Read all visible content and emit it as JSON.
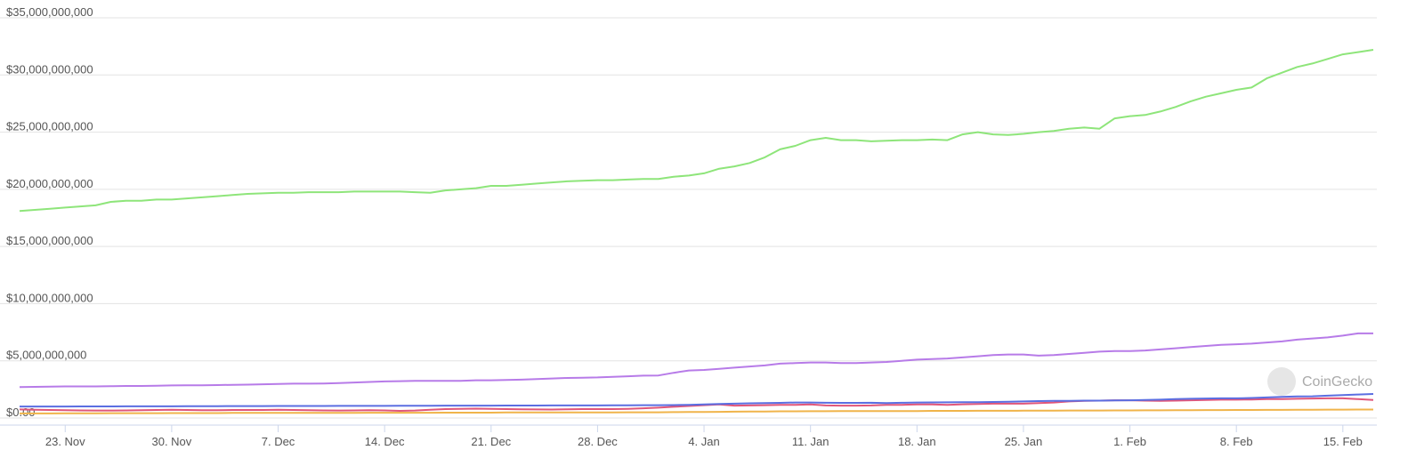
{
  "chart_data": {
    "type": "line",
    "watermark": "CoinGecko",
    "categories": [
      null,
      null,
      null,
      "23. Nov",
      null,
      null,
      null,
      null,
      null,
      null,
      "30. Nov",
      null,
      null,
      null,
      null,
      null,
      null,
      "7. Dec",
      null,
      null,
      null,
      null,
      null,
      null,
      "14. Dec",
      null,
      null,
      null,
      null,
      null,
      null,
      "21. Dec",
      null,
      null,
      null,
      null,
      null,
      null,
      "28. Dec",
      null,
      null,
      null,
      null,
      null,
      null,
      "4. Jan",
      null,
      null,
      null,
      null,
      null,
      null,
      "11. Jan",
      null,
      null,
      null,
      null,
      null,
      null,
      "18. Jan",
      null,
      null,
      null,
      null,
      null,
      null,
      "25. Jan",
      null,
      null,
      null,
      null,
      null,
      null,
      "1. Feb",
      null,
      null,
      null,
      null,
      null,
      null,
      "8. Feb",
      null,
      null,
      null,
      null,
      null,
      null,
      "15. Feb",
      null,
      null
    ],
    "ylim": [
      0,
      35000000000
    ],
    "yticks": [
      {
        "value": 0,
        "label": "$0.00"
      },
      {
        "value": 5000000000,
        "label": "$5,000,000,000"
      },
      {
        "value": 10000000000,
        "label": "$10,000,000,000"
      },
      {
        "value": 15000000000,
        "label": "$15,000,000,000"
      },
      {
        "value": 20000000000,
        "label": "$20,000,000,000"
      },
      {
        "value": 25000000000,
        "label": "$25,000,000,000"
      },
      {
        "value": 30000000000,
        "label": "$30,000,000,000"
      },
      {
        "value": 35000000000,
        "label": "$35,000,000,000"
      }
    ],
    "grid": true,
    "series": [
      {
        "color": "#8ee57a",
        "values": [
          18100000000.0,
          18200000000.0,
          18300000000.0,
          18400000000.0,
          18500000000.0,
          18600000000.0,
          18900000000.0,
          19000000000.0,
          19000000000.0,
          19100000000.0,
          19100000000.0,
          19200000000.0,
          19300000000.0,
          19400000000.0,
          19500000000.0,
          19600000000.0,
          19650000000.0,
          19700000000.0,
          19700000000.0,
          19750000000.0,
          19750000000.0,
          19750000000.0,
          19800000000.0,
          19800000000.0,
          19800000000.0,
          19800000000.0,
          19750000000.0,
          19700000000.0,
          19900000000.0,
          20000000000.0,
          20100000000.0,
          20300000000.0,
          20300000000.0,
          20400000000.0,
          20500000000.0,
          20600000000.0,
          20700000000.0,
          20750000000.0,
          20800000000.0,
          20800000000.0,
          20850000000.0,
          20900000000.0,
          20900000000.0,
          21100000000.0,
          21200000000.0,
          21400000000.0,
          21800000000.0,
          22000000000.0,
          22300000000.0,
          22800000000.0,
          23500000000.0,
          23800000000.0,
          24300000000.0,
          24500000000.0,
          24300000000.0,
          24300000000.0,
          24200000000.0,
          24250000000.0,
          24300000000.0,
          24300000000.0,
          24350000000.0,
          24300000000.0,
          24800000000.0,
          25000000000.0,
          24800000000.0,
          24750000000.0,
          24850000000.0,
          25000000000.0,
          25100000000.0,
          25300000000.0,
          25400000000.0,
          25300000000.0,
          26200000000.0,
          26400000000.0,
          26500000000.0,
          26800000000.0,
          27200000000.0,
          27700000000.0,
          28100000000.0,
          28400000000.0,
          28700000000.0,
          28900000000.0,
          29700000000.0,
          30200000000.0,
          30700000000.0,
          31000000000.0,
          31400000000.0,
          31800000000.0,
          32000000000.0,
          32200000000.0
        ]
      },
      {
        "color": "#b77be8",
        "values": [
          2700000000.0,
          2720000000.0,
          2740000000.0,
          2760000000.0,
          2760000000.0,
          2760000000.0,
          2780000000.0,
          2800000000.0,
          2800000000.0,
          2820000000.0,
          2850000000.0,
          2860000000.0,
          2860000000.0,
          2880000000.0,
          2900000000.0,
          2920000000.0,
          2950000000.0,
          2980000000.0,
          3000000000.0,
          3000000000.0,
          3020000000.0,
          3050000000.0,
          3100000000.0,
          3150000000.0,
          3200000000.0,
          3220000000.0,
          3240000000.0,
          3250000000.0,
          3250000000.0,
          3250000000.0,
          3300000000.0,
          3300000000.0,
          3320000000.0,
          3350000000.0,
          3400000000.0,
          3450000000.0,
          3500000000.0,
          3520000000.0,
          3550000000.0,
          3600000000.0,
          3650000000.0,
          3700000000.0,
          3720000000.0,
          3950000000.0,
          4150000000.0,
          4200000000.0,
          4300000000.0,
          4400000000.0,
          4500000000.0,
          4600000000.0,
          4750000000.0,
          4800000000.0,
          4850000000.0,
          4850000000.0,
          4800000000.0,
          4800000000.0,
          4850000000.0,
          4900000000.0,
          5000000000.0,
          5100000000.0,
          5150000000.0,
          5200000000.0,
          5300000000.0,
          5400000000.0,
          5500000000.0,
          5550000000.0,
          5550000000.0,
          5450000000.0,
          5500000000.0,
          5600000000.0,
          5700000000.0,
          5800000000.0,
          5850000000.0,
          5850000000.0,
          5900000000.0,
          6000000000.0,
          6100000000.0,
          6200000000.0,
          6300000000.0,
          6400000000.0,
          6450000000.0,
          6500000000.0,
          6600000000.0,
          6700000000.0,
          6850000000.0,
          6950000000.0,
          7050000000.0,
          7200000000.0,
          7400000000.0,
          7400000000.0
        ]
      },
      {
        "color": "#5b6ee1",
        "values": [
          1000000000.0,
          1000000000.0,
          1000000000.0,
          1000000000.0,
          1010000000.0,
          1010000000.0,
          1010000000.0,
          1020000000.0,
          1020000000.0,
          1020000000.0,
          1020000000.0,
          1030000000.0,
          1030000000.0,
          1030000000.0,
          1040000000.0,
          1040000000.0,
          1040000000.0,
          1050000000.0,
          1050000000.0,
          1050000000.0,
          1050000000.0,
          1060000000.0,
          1060000000.0,
          1060000000.0,
          1060000000.0,
          1070000000.0,
          1070000000.0,
          1070000000.0,
          1080000000.0,
          1080000000.0,
          1080000000.0,
          1080000000.0,
          1090000000.0,
          1090000000.0,
          1090000000.0,
          1100000000.0,
          1100000000.0,
          1100000000.0,
          1100000000.0,
          1110000000.0,
          1110000000.0,
          1120000000.0,
          1120000000.0,
          1130000000.0,
          1150000000.0,
          1180000000.0,
          1220000000.0,
          1250000000.0,
          1280000000.0,
          1300000000.0,
          1320000000.0,
          1350000000.0,
          1350000000.0,
          1330000000.0,
          1320000000.0,
          1320000000.0,
          1330000000.0,
          1300000000.0,
          1330000000.0,
          1350000000.0,
          1360000000.0,
          1370000000.0,
          1380000000.0,
          1380000000.0,
          1400000000.0,
          1420000000.0,
          1450000000.0,
          1480000000.0,
          1500000000.0,
          1500000000.0,
          1520000000.0,
          1520000000.0,
          1530000000.0,
          1550000000.0,
          1580000000.0,
          1600000000.0,
          1650000000.0,
          1680000000.0,
          1700000000.0,
          1720000000.0,
          1720000000.0,
          1750000000.0,
          1800000000.0,
          1850000000.0,
          1880000000.0,
          1900000000.0,
          1950000000.0,
          2000000000.0,
          2050000000.0,
          2100000000.0
        ]
      },
      {
        "color": "#e0567a",
        "values": [
          750000000.0,
          720000000.0,
          700000000.0,
          680000000.0,
          660000000.0,
          650000000.0,
          650000000.0,
          660000000.0,
          680000000.0,
          700000000.0,
          720000000.0,
          700000000.0,
          680000000.0,
          680000000.0,
          700000000.0,
          700000000.0,
          700000000.0,
          720000000.0,
          700000000.0,
          680000000.0,
          660000000.0,
          650000000.0,
          660000000.0,
          680000000.0,
          660000000.0,
          620000000.0,
          650000000.0,
          720000000.0,
          780000000.0,
          800000000.0,
          820000000.0,
          800000000.0,
          780000000.0,
          760000000.0,
          750000000.0,
          740000000.0,
          760000000.0,
          780000000.0,
          780000000.0,
          780000000.0,
          800000000.0,
          850000000.0,
          900000000.0,
          980000000.0,
          1050000000.0,
          1120000000.0,
          1180000000.0,
          1080000000.0,
          1100000000.0,
          1120000000.0,
          1150000000.0,
          1150000000.0,
          1180000000.0,
          1100000000.0,
          1080000000.0,
          1080000000.0,
          1100000000.0,
          1150000000.0,
          1150000000.0,
          1180000000.0,
          1180000000.0,
          1150000000.0,
          1200000000.0,
          1220000000.0,
          1250000000.0,
          1250000000.0,
          1250000000.0,
          1300000000.0,
          1350000000.0,
          1450000000.0,
          1500000000.0,
          1520000000.0,
          1550000000.0,
          1550000000.0,
          1520000000.0,
          1500000000.0,
          1520000000.0,
          1550000000.0,
          1580000000.0,
          1600000000.0,
          1600000000.0,
          1620000000.0,
          1650000000.0,
          1650000000.0,
          1680000000.0,
          1700000000.0,
          1720000000.0,
          1720000000.0,
          1650000000.0,
          1580000000.0
        ]
      },
      {
        "color": "#f0b44a",
        "values": [
          400000000.0,
          400000000.0,
          400000000.0,
          410000000.0,
          410000000.0,
          410000000.0,
          420000000.0,
          420000000.0,
          420000000.0,
          420000000.0,
          430000000.0,
          430000000.0,
          430000000.0,
          430000000.0,
          440000000.0,
          440000000.0,
          440000000.0,
          440000000.0,
          450000000.0,
          450000000.0,
          450000000.0,
          450000000.0,
          450000000.0,
          460000000.0,
          460000000.0,
          460000000.0,
          460000000.0,
          460000000.0,
          470000000.0,
          470000000.0,
          470000000.0,
          470000000.0,
          480000000.0,
          480000000.0,
          480000000.0,
          480000000.0,
          490000000.0,
          490000000.0,
          490000000.0,
          490000000.0,
          500000000.0,
          500000000.0,
          500000000.0,
          510000000.0,
          520000000.0,
          530000000.0,
          540000000.0,
          550000000.0,
          560000000.0,
          570000000.0,
          580000000.0,
          580000000.0,
          590000000.0,
          590000000.0,
          600000000.0,
          600000000.0,
          600000000.0,
          610000000.0,
          610000000.0,
          610000000.0,
          620000000.0,
          620000000.0,
          620000000.0,
          630000000.0,
          630000000.0,
          630000000.0,
          640000000.0,
          640000000.0,
          640000000.0,
          650000000.0,
          650000000.0,
          650000000.0,
          660000000.0,
          660000000.0,
          670000000.0,
          670000000.0,
          680000000.0,
          680000000.0,
          690000000.0,
          690000000.0,
          700000000.0,
          700000000.0,
          710000000.0,
          710000000.0,
          720000000.0,
          720000000.0,
          730000000.0,
          730000000.0,
          740000000.0,
          740000000.0
        ]
      }
    ]
  }
}
